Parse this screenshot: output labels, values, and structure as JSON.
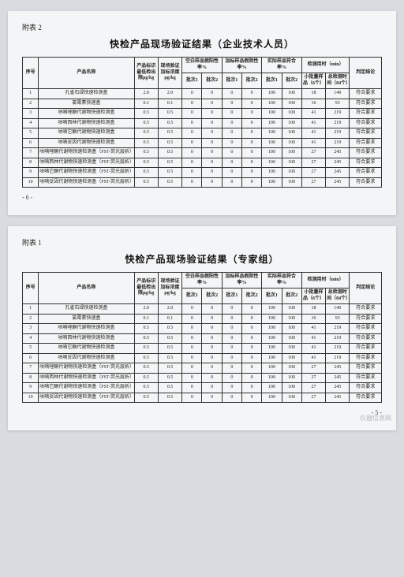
{
  "common": {
    "headers": {
      "seq": "序号",
      "name": "产品名称",
      "std": "产品标识最低检出限μg/kg",
      "val": "现场验证加标浓度μg/kg",
      "blank": "空白样品假阳性率%",
      "spiked": "加标样品假阴性率%",
      "actual": "实际样品符合率%",
      "time": "检测用时（min）",
      "batch1": "批次1",
      "batch2": "批次2",
      "small": "小批量样品（6个）",
      "total": "总检测时间（84个）",
      "concl": "判定结论"
    },
    "productNames": [
      "孔雀石绿快速检测盒",
      "氯霉素快速盒",
      "呋喃唑酮代谢物快速检测盒",
      "呋喃西林代谢物快速检测盒",
      "呋喃它酮代谢物快速检测盒",
      "呋喃妥因代谢物快速检测盒",
      "呋喃唑酮代谢物快速检测盒（FST-荧光层析）",
      "呋喃西林代谢物快速检测盒（FST-荧光层析）",
      "呋喃它酮代谢物快速检测盒（FST-荧光层析）",
      "呋喃妥因代谢物快速检测盒（FST-荧光层析）"
    ],
    "conclusion": "符合要求"
  },
  "page2": {
    "appendix": "附表 2",
    "title": "快检产品现场验证结果（企业技术人员）",
    "rows": [
      {
        "std": "2.0",
        "val": "2.0",
        "b1": "0",
        "b2": "0",
        "s1": "0",
        "s2": "0",
        "a1": "100",
        "a2": "100",
        "t1": "18",
        "t2": "149"
      },
      {
        "std": "0.1",
        "val": "0.1",
        "b1": "0",
        "b2": "0",
        "s1": "0",
        "s2": "0",
        "a1": "100",
        "a2": "100",
        "t1": "16",
        "t2": "93"
      },
      {
        "std": "0.5",
        "val": "0.5",
        "b1": "0",
        "b2": "0",
        "s1": "0",
        "s2": "0",
        "a1": "100",
        "a2": "100",
        "t1": "41",
        "t2": "219"
      },
      {
        "std": "0.5",
        "val": "0.5",
        "b1": "0",
        "b2": "0",
        "s1": "0",
        "s2": "0",
        "a1": "100",
        "a2": "100",
        "t1": "41",
        "t2": "219"
      },
      {
        "std": "0.5",
        "val": "0.5",
        "b1": "0",
        "b2": "0",
        "s1": "0",
        "s2": "0",
        "a1": "100",
        "a2": "100",
        "t1": "41",
        "t2": "219"
      },
      {
        "std": "0.5",
        "val": "0.5",
        "b1": "0",
        "b2": "0",
        "s1": "0",
        "s2": "0",
        "a1": "100",
        "a2": "100",
        "t1": "41",
        "t2": "219"
      },
      {
        "std": "0.5",
        "val": "0.5",
        "b1": "0",
        "b2": "0",
        "s1": "0",
        "s2": "0",
        "a1": "100",
        "a2": "100",
        "t1": "27",
        "t2": "245"
      },
      {
        "std": "0.5",
        "val": "0.5",
        "b1": "0",
        "b2": "0",
        "s1": "0",
        "s2": "0",
        "a1": "100",
        "a2": "100",
        "t1": "27",
        "t2": "245"
      },
      {
        "std": "0.5",
        "val": "0.5",
        "b1": "0",
        "b2": "0",
        "s1": "0",
        "s2": "0",
        "a1": "100",
        "a2": "100",
        "t1": "27",
        "t2": "245"
      },
      {
        "std": "0.5",
        "val": "0.5",
        "b1": "0",
        "b2": "0",
        "s1": "0",
        "s2": "0",
        "a1": "100",
        "a2": "100",
        "t1": "27",
        "t2": "245"
      }
    ],
    "pagenum": "- 6 -",
    "pagenumAlign": "left"
  },
  "page1": {
    "appendix": "附表 1",
    "title": "快检产品现场验证结果（专家组）",
    "rows": [
      {
        "std": "2.0",
        "val": "2.0",
        "b1": "0",
        "b2": "0",
        "s1": "0",
        "s2": "0",
        "a1": "100",
        "a2": "100",
        "t1": "18",
        "t2": "149"
      },
      {
        "std": "0.1",
        "val": "0.1",
        "b1": "0",
        "b2": "0",
        "s1": "0",
        "s2": "0",
        "a1": "100",
        "a2": "100",
        "t1": "16",
        "t2": "93"
      },
      {
        "std": "0.5",
        "val": "0.5",
        "b1": "0",
        "b2": "0",
        "s1": "0",
        "s2": "0",
        "a1": "100",
        "a2": "100",
        "t1": "41",
        "t2": "219"
      },
      {
        "std": "0.5",
        "val": "0.5",
        "b1": "0",
        "b2": "0",
        "s1": "0",
        "s2": "0",
        "a1": "100",
        "a2": "100",
        "t1": "41",
        "t2": "219"
      },
      {
        "std": "0.5",
        "val": "0.5",
        "b1": "0",
        "b2": "0",
        "s1": "0",
        "s2": "0",
        "a1": "100",
        "a2": "100",
        "t1": "41",
        "t2": "219"
      },
      {
        "std": "0.5",
        "val": "0.5",
        "b1": "0",
        "b2": "0",
        "s1": "0",
        "s2": "0",
        "a1": "100",
        "a2": "100",
        "t1": "41",
        "t2": "219"
      },
      {
        "std": "0.5",
        "val": "0.5",
        "b1": "0",
        "b2": "0",
        "s1": "0",
        "s2": "0",
        "a1": "100",
        "a2": "100",
        "t1": "27",
        "t2": "245"
      },
      {
        "std": "0.5",
        "val": "0.5",
        "b1": "0",
        "b2": "0",
        "s1": "0",
        "s2": "0",
        "a1": "100",
        "a2": "100",
        "t1": "27",
        "t2": "245"
      },
      {
        "std": "0.5",
        "val": "0.5",
        "b1": "0",
        "b2": "0",
        "s1": "0",
        "s2": "0",
        "a1": "100",
        "a2": "100",
        "t1": "27",
        "t2": "245"
      },
      {
        "std": "0.5",
        "val": "0.5",
        "b1": "0",
        "b2": "0",
        "s1": "0",
        "s2": "0",
        "a1": "100",
        "a2": "100",
        "t1": "27",
        "t2": "245"
      }
    ],
    "pagenum": "- 5 -",
    "pagenumAlign": "right"
  },
  "watermark": "仪器信息网"
}
